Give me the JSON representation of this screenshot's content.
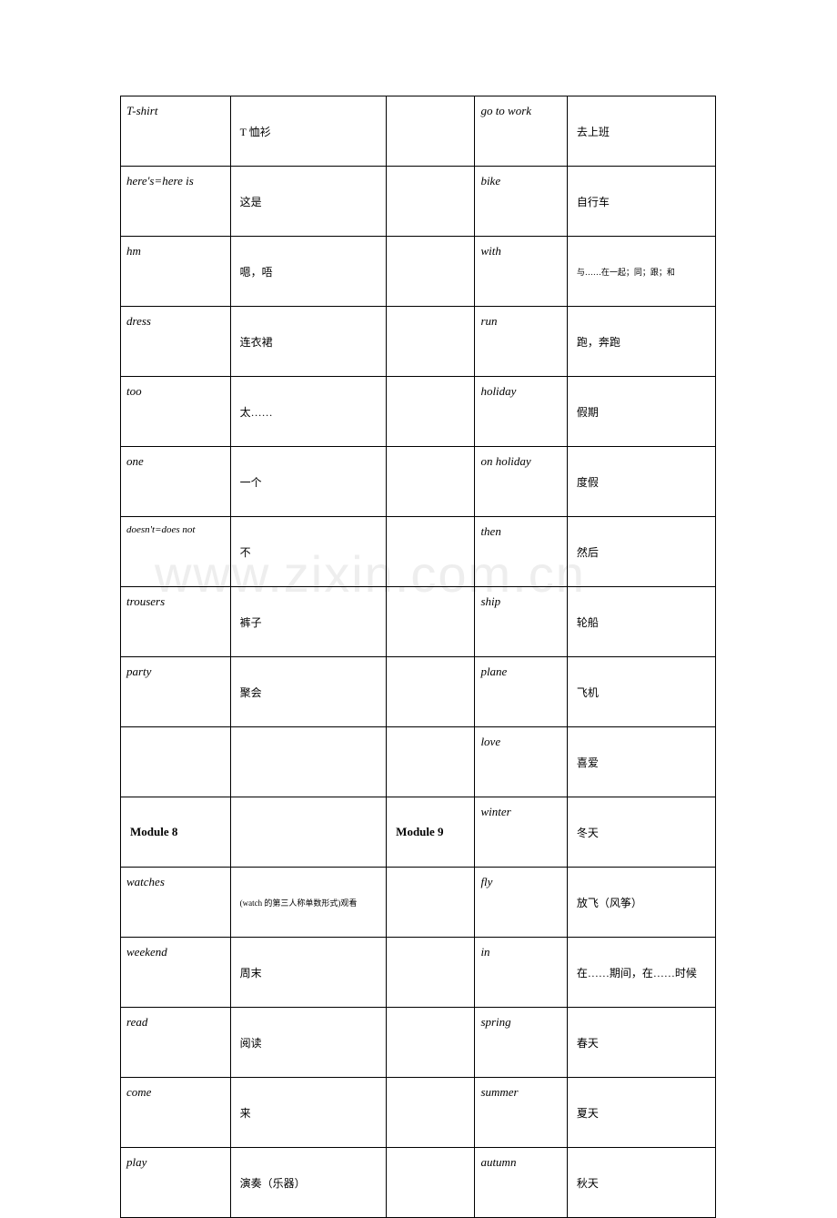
{
  "watermark": "www.zixin.com.cn",
  "rows": [
    {
      "c1": "T-shirt",
      "c2": "T 恤衫",
      "c3": "",
      "c4": "go   to   work",
      "c5": "去上班"
    },
    {
      "c1": "here's=here    is",
      "c2": "这是",
      "c3": "",
      "c4": "bike",
      "c5": "自行车"
    },
    {
      "c1": "hm",
      "c2": "嗯，唔",
      "c3": "",
      "c4": "with",
      "c5": "与……在一起；同；跟；和",
      "c5small": true
    },
    {
      "c1": "dress",
      "c2": "连衣裙",
      "c3": "",
      "c4": "run",
      "c5": "跑，奔跑"
    },
    {
      "c1": "too",
      "c2": "太……",
      "c3": "",
      "c4": "holiday",
      "c5": "假期"
    },
    {
      "c1": "one",
      "c2": "一个",
      "c3": "",
      "c4": "on holiday",
      "c5": "度假"
    },
    {
      "c1": "doesn't=does not",
      "c2": "不",
      "c3": "",
      "c4": "then",
      "c5": "然后",
      "c1small": true
    },
    {
      "c1": "trousers",
      "c2": "裤子",
      "c3": "",
      "c4": "ship",
      "c5": "轮船"
    },
    {
      "c1": "party",
      "c2": "聚会",
      "c3": "",
      "c4": "plane",
      "c5": "飞机"
    },
    {
      "c1": "",
      "c2": "",
      "c3": "",
      "c4": "love",
      "c5": "喜爱"
    },
    {
      "c1": "Module   8",
      "c2": "",
      "c3": "Module   9",
      "c4": "winter",
      "c5": "冬天",
      "module": true
    },
    {
      "c1": "watches",
      "c2": "(watch 的第三人称单数形式)观看",
      "c3": "",
      "c4": "fly",
      "c5": "放飞（风筝）",
      "c2small": true
    },
    {
      "c1": "weekend",
      "c2": "周末",
      "c3": "",
      "c4": "in",
      "c5": "在……期间，在……时候"
    },
    {
      "c1": "read",
      "c2": "阅读",
      "c3": "",
      "c4": "spring",
      "c5": "春天"
    },
    {
      "c1": "come",
      "c2": "来",
      "c3": "",
      "c4": "summer",
      "c5": "夏天"
    },
    {
      "c1": "play",
      "c2": "演奏（乐器）",
      "c3": "",
      "c4": "autumn",
      "c5": "秋天"
    }
  ]
}
